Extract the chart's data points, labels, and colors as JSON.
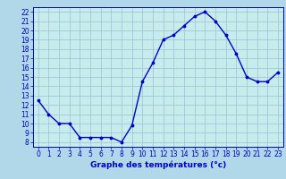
{
  "hours": [
    0,
    1,
    2,
    3,
    4,
    5,
    6,
    7,
    8,
    9,
    10,
    11,
    12,
    13,
    14,
    15,
    16,
    17,
    18,
    19,
    20,
    21,
    22,
    23
  ],
  "temperatures": [
    12.5,
    11.0,
    10.0,
    10.0,
    8.5,
    8.5,
    8.5,
    8.5,
    8.0,
    9.8,
    14.5,
    16.5,
    19.0,
    19.5,
    20.5,
    21.5,
    22.0,
    21.0,
    19.5,
    17.5,
    15.0,
    14.5,
    14.5,
    15.5
  ],
  "line_color": "#0000cc",
  "marker_color": "#0000cc",
  "bg_color": "#b0d8e8",
  "plot_bg_color": "#c8ecec",
  "grid_color": "#a0c8d8",
  "xlabel": "Graphe des températures (°c)",
  "xlabel_color": "#0000cc",
  "tick_color": "#0000cc",
  "ylim": [
    7.5,
    22.5
  ],
  "xlim": [
    -0.5,
    23.5
  ],
  "yticks": [
    8,
    9,
    10,
    11,
    12,
    13,
    14,
    15,
    16,
    17,
    18,
    19,
    20,
    21,
    22
  ],
  "xticks": [
    0,
    1,
    2,
    3,
    4,
    5,
    6,
    7,
    8,
    9,
    10,
    11,
    12,
    13,
    14,
    15,
    16,
    17,
    18,
    19,
    20,
    21,
    22,
    23
  ],
  "marker_size": 3.5,
  "line_width": 1.0,
  "tick_fontsize": 5.5,
  "xlabel_fontsize": 6.5
}
